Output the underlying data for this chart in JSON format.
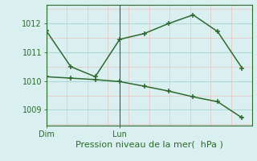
{
  "line1_x": [
    0,
    1,
    2,
    3,
    4,
    5,
    6,
    7,
    8
  ],
  "line1_y": [
    1011.75,
    1010.5,
    1010.15,
    1011.45,
    1011.65,
    1012.0,
    1012.3,
    1011.72,
    1010.45
  ],
  "line2_x": [
    0,
    1,
    2,
    3,
    4,
    5,
    6,
    7,
    8
  ],
  "line2_y": [
    1010.15,
    1010.1,
    1010.05,
    1009.98,
    1009.82,
    1009.65,
    1009.45,
    1009.28,
    1008.72
  ],
  "line_color": "#2d6a2d",
  "bg_color": "#d9eff0",
  "grid_major_color": "#afd8d8",
  "grid_minor_color": "#e8c8c8",
  "xlabel": "Pression niveau de la mer(  hPa )",
  "xtick_labels": [
    "Dim",
    "Lun"
  ],
  "xtick_pos": [
    0,
    3
  ],
  "ytick_labels": [
    "1009",
    "1010",
    "1011",
    "1012"
  ],
  "ytick_pos": [
    1009,
    1010,
    1011,
    1012
  ],
  "ylim": [
    1008.45,
    1012.65
  ],
  "xlim": [
    0,
    8.4
  ],
  "tick_color": "#2d6a2d",
  "spine_color": "#2d6a2d",
  "xlabel_color": "#2d6a2d",
  "xlabel_fontsize": 8,
  "tick_fontsize": 7
}
